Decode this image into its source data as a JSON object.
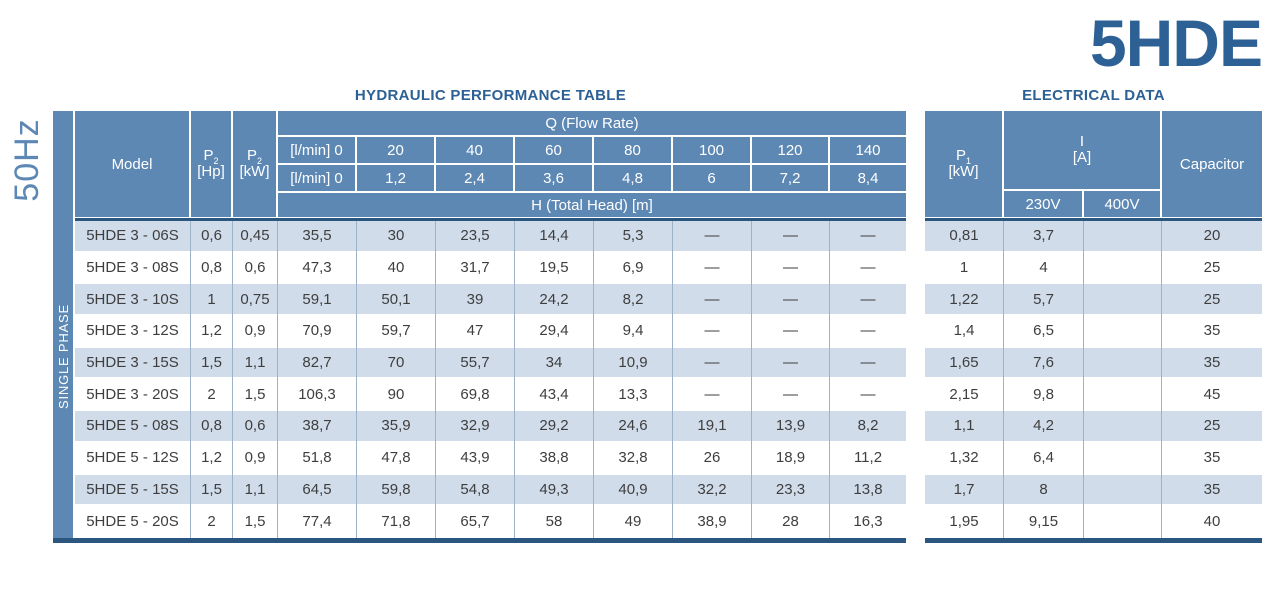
{
  "page": {
    "product_code": "5HDE",
    "frequency_label": "50Hz",
    "phase_label": "SINGLE PHASE"
  },
  "colors": {
    "header_blue": "#5d88b4",
    "row_highlight_blue": "#d0dcea",
    "title_navy": "#2d6094",
    "rule_navy": "#2b5680",
    "grid_line": "#9db2c6",
    "data_text": "#3e3e3e"
  },
  "hydraulic": {
    "title": "HYDRAULIC PERFORMANCE TABLE",
    "header": {
      "model": "Model",
      "p2_hp": {
        "sym": "P",
        "sub": "2",
        "unit": "[Hp]"
      },
      "p2_kw": {
        "sym": "P",
        "sub": "2",
        "unit": "[kW]"
      },
      "q_title": "Q (Flow Rate)",
      "flow_row_top": [
        "[l/min] 0",
        "20",
        "40",
        "60",
        "80",
        "100",
        "120",
        "140"
      ],
      "flow_row_bottom": [
        "[l/min] 0",
        "1,2",
        "2,4",
        "3,6",
        "4,8",
        "6",
        "7,2",
        "8,4"
      ],
      "h_title": "H (Total Head) [m]"
    },
    "rows": [
      {
        "model": "5HDE 3 - 06S",
        "p2_hp": "0,6",
        "p2_kw": "0,45",
        "head": [
          "35,5",
          "30",
          "23,5",
          "14,4",
          "5,3",
          "—",
          "—",
          "—"
        ]
      },
      {
        "model": "5HDE 3 - 08S",
        "p2_hp": "0,8",
        "p2_kw": "0,6",
        "head": [
          "47,3",
          "40",
          "31,7",
          "19,5",
          "6,9",
          "—",
          "—",
          "—"
        ]
      },
      {
        "model": "5HDE 3 - 10S",
        "p2_hp": "1",
        "p2_kw": "0,75",
        "head": [
          "59,1",
          "50,1",
          "39",
          "24,2",
          "8,2",
          "—",
          "—",
          "—"
        ]
      },
      {
        "model": "5HDE 3 - 12S",
        "p2_hp": "1,2",
        "p2_kw": "0,9",
        "head": [
          "70,9",
          "59,7",
          "47",
          "29,4",
          "9,4",
          "—",
          "—",
          "—"
        ]
      },
      {
        "model": "5HDE 3 - 15S",
        "p2_hp": "1,5",
        "p2_kw": "1,1",
        "head": [
          "82,7",
          "70",
          "55,7",
          "34",
          "10,9",
          "—",
          "—",
          "—"
        ]
      },
      {
        "model": "5HDE 3 - 20S",
        "p2_hp": "2",
        "p2_kw": "1,5",
        "head": [
          "106,3",
          "90",
          "69,8",
          "43,4",
          "13,3",
          "—",
          "—",
          "—"
        ]
      },
      {
        "model": "5HDE 5 - 08S",
        "p2_hp": "0,8",
        "p2_kw": "0,6",
        "head": [
          "38,7",
          "35,9",
          "32,9",
          "29,2",
          "24,6",
          "19,1",
          "13,9",
          "8,2"
        ]
      },
      {
        "model": "5HDE 5 - 12S",
        "p2_hp": "1,2",
        "p2_kw": "0,9",
        "head": [
          "51,8",
          "47,8",
          "43,9",
          "38,8",
          "32,8",
          "26",
          "18,9",
          "11,2"
        ]
      },
      {
        "model": "5HDE 5 - 15S",
        "p2_hp": "1,5",
        "p2_kw": "1,1",
        "head": [
          "64,5",
          "59,8",
          "54,8",
          "49,3",
          "40,9",
          "32,2",
          "23,3",
          "13,8"
        ]
      },
      {
        "model": "5HDE 5 - 20S",
        "p2_hp": "2",
        "p2_kw": "1,5",
        "head": [
          "77,4",
          "71,8",
          "65,7",
          "58",
          "49",
          "38,9",
          "28",
          "16,3"
        ]
      }
    ]
  },
  "electrical": {
    "title": "ELECTRICAL DATA",
    "header": {
      "p1": {
        "sym": "P",
        "sub": "1",
        "unit": "[kW]"
      },
      "i": {
        "label": "I",
        "unit": "[A]"
      },
      "voltages": [
        "230V",
        "400V"
      ],
      "capacitor": "Capacitor"
    },
    "rows": [
      {
        "p1": "0,81",
        "i_230v": "3,7",
        "i_400v": "",
        "capacitor": "20"
      },
      {
        "p1": "1",
        "i_230v": "4",
        "i_400v": "",
        "capacitor": "25"
      },
      {
        "p1": "1,22",
        "i_230v": "5,7",
        "i_400v": "",
        "capacitor": "25"
      },
      {
        "p1": "1,4",
        "i_230v": "6,5",
        "i_400v": "",
        "capacitor": "35"
      },
      {
        "p1": "1,65",
        "i_230v": "7,6",
        "i_400v": "",
        "capacitor": "35"
      },
      {
        "p1": "2,15",
        "i_230v": "9,8",
        "i_400v": "",
        "capacitor": "45"
      },
      {
        "p1": "1,1",
        "i_230v": "4,2",
        "i_400v": "",
        "capacitor": "25"
      },
      {
        "p1": "1,32",
        "i_230v": "6,4",
        "i_400v": "",
        "capacitor": "35"
      },
      {
        "p1": "1,7",
        "i_230v": "8",
        "i_400v": "",
        "capacitor": "35"
      },
      {
        "p1": "1,95",
        "i_230v": "9,15",
        "i_400v": "",
        "capacitor": "40"
      }
    ]
  }
}
